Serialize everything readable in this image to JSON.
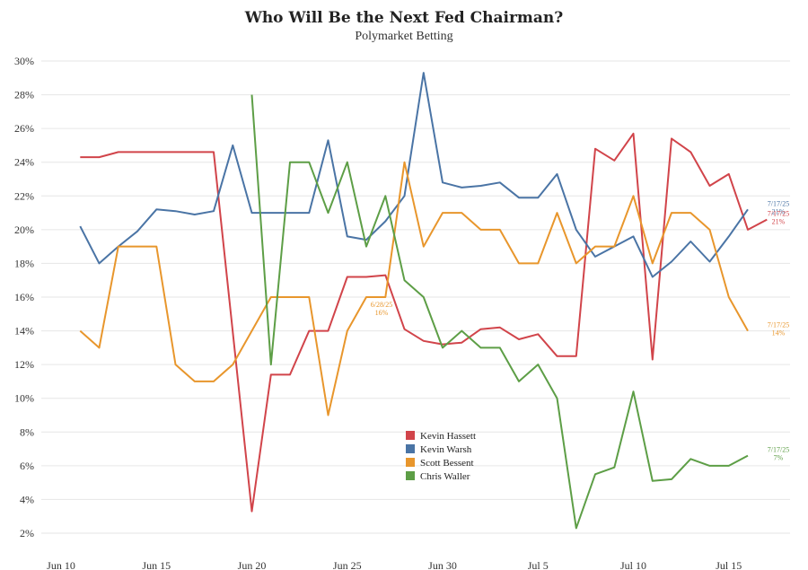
{
  "chart_data": {
    "type": "line",
    "title": "Who Will Be the Next Fed Chairman?",
    "subtitle": "Polymarket Betting",
    "xlabel": "",
    "ylabel": "",
    "ylim": [
      2,
      30
    ],
    "y_ticks": [
      "2%",
      "4%",
      "6%",
      "8%",
      "10%",
      "12%",
      "14%",
      "16%",
      "18%",
      "20%",
      "22%",
      "24%",
      "26%",
      "28%",
      "30%"
    ],
    "x_range": [
      0,
      37
    ],
    "x_ticks": [
      {
        "label": "Jun 10",
        "x": 0
      },
      {
        "label": "Jun 15",
        "x": 5
      },
      {
        "label": "Jun 20",
        "x": 10
      },
      {
        "label": "Jun 25",
        "x": 15
      },
      {
        "label": "Jun 30",
        "x": 20
      },
      {
        "label": "Jul 5",
        "x": 25
      },
      {
        "label": "Jul 10",
        "x": 30
      },
      {
        "label": "Jul 15",
        "x": 35
      }
    ],
    "grid": true,
    "legend_position": "center-bottom",
    "series": [
      {
        "name": "Kevin Hassett",
        "color": "#d1444a",
        "points": [
          [
            1,
            24.3
          ],
          [
            2,
            24.3
          ],
          [
            3,
            24.6
          ],
          [
            4,
            24.6
          ],
          [
            5,
            24.6
          ],
          [
            6,
            24.6
          ],
          [
            7,
            24.6
          ],
          [
            8,
            24.6
          ],
          [
            10,
            3.3
          ],
          [
            11,
            11.4
          ],
          [
            12,
            11.4
          ],
          [
            13,
            14
          ],
          [
            14,
            14
          ],
          [
            15,
            17.2
          ],
          [
            16,
            17.2
          ],
          [
            17,
            17.3
          ],
          [
            18,
            14.1
          ],
          [
            19,
            13.4
          ],
          [
            20,
            13.2
          ],
          [
            21,
            13.3
          ],
          [
            22,
            14.1
          ],
          [
            23,
            14.2
          ],
          [
            24,
            13.5
          ],
          [
            25,
            13.8
          ],
          [
            26,
            12.5
          ],
          [
            27,
            12.5
          ],
          [
            28,
            24.8
          ],
          [
            29,
            24.1
          ],
          [
            30,
            25.7
          ],
          [
            31,
            12.3
          ],
          [
            32,
            25.4
          ],
          [
            33,
            24.6
          ],
          [
            34,
            22.6
          ],
          [
            35,
            23.3
          ],
          [
            36,
            20
          ],
          [
            37,
            20.6
          ]
        ]
      },
      {
        "name": "Kevin Warsh",
        "color": "#4a74a5",
        "points": [
          [
            1,
            20.2
          ],
          [
            2,
            18
          ],
          [
            3,
            19
          ],
          [
            4,
            19.9
          ],
          [
            5,
            21.2
          ],
          [
            6,
            21.1
          ],
          [
            7,
            20.9
          ],
          [
            8,
            21.1
          ],
          [
            9,
            25
          ],
          [
            10,
            21
          ],
          [
            11,
            21
          ],
          [
            12,
            21
          ],
          [
            13,
            21
          ],
          [
            14,
            25.3
          ],
          [
            15,
            19.6
          ],
          [
            16,
            19.4
          ],
          [
            17,
            20.5
          ],
          [
            18,
            22
          ],
          [
            19,
            29.3
          ],
          [
            20,
            22.8
          ],
          [
            21,
            22.5
          ],
          [
            22,
            22.6
          ],
          [
            23,
            22.8
          ],
          [
            24,
            21.9
          ],
          [
            25,
            21.9
          ],
          [
            26,
            23.3
          ],
          [
            27,
            20
          ],
          [
            28,
            18.4
          ],
          [
            29,
            19
          ],
          [
            30,
            19.6
          ],
          [
            31,
            17.2
          ],
          [
            32,
            18.1
          ],
          [
            33,
            19.3
          ],
          [
            34,
            18.1
          ],
          [
            35,
            19.6
          ],
          [
            36,
            21.2
          ]
        ]
      },
      {
        "name": "Scott Bessent",
        "color": "#e8962c",
        "points": [
          [
            1,
            14
          ],
          [
            2,
            13
          ],
          [
            3,
            19
          ],
          [
            4,
            19
          ],
          [
            5,
            19
          ],
          [
            6,
            12
          ],
          [
            7,
            11
          ],
          [
            8,
            11
          ],
          [
            9,
            12
          ],
          [
            10,
            14
          ],
          [
            11,
            16
          ],
          [
            12,
            16
          ],
          [
            13,
            16
          ],
          [
            14,
            9
          ],
          [
            15,
            14
          ],
          [
            16,
            16
          ],
          [
            17,
            16
          ],
          [
            18,
            24
          ],
          [
            19,
            19
          ],
          [
            20,
            21
          ],
          [
            21,
            21
          ],
          [
            22,
            20
          ],
          [
            23,
            20
          ],
          [
            24,
            18
          ],
          [
            25,
            18
          ],
          [
            26,
            21
          ],
          [
            27,
            18
          ],
          [
            28,
            19
          ],
          [
            29,
            19
          ],
          [
            30,
            22
          ],
          [
            31,
            18
          ],
          [
            32,
            21
          ],
          [
            33,
            21
          ],
          [
            34,
            20
          ],
          [
            35,
            16
          ],
          [
            36,
            14
          ]
        ]
      },
      {
        "name": "Chris Waller",
        "color": "#5d9e46",
        "points": [
          [
            10,
            28
          ],
          [
            11,
            12
          ],
          [
            12,
            24
          ],
          [
            13,
            24
          ],
          [
            14,
            21
          ],
          [
            15,
            24
          ],
          [
            16,
            19
          ],
          [
            17,
            22
          ],
          [
            18,
            17
          ],
          [
            19,
            16
          ],
          [
            20,
            13
          ],
          [
            21,
            14
          ],
          [
            22,
            13
          ],
          [
            23,
            13
          ],
          [
            24,
            11
          ],
          [
            25,
            12
          ],
          [
            26,
            10
          ],
          [
            27,
            2.3
          ],
          [
            28,
            5.5
          ],
          [
            29,
            5.9
          ],
          [
            30,
            10.4
          ],
          [
            31,
            5.1
          ],
          [
            32,
            5.2
          ],
          [
            33,
            6.4
          ],
          [
            34,
            6
          ],
          [
            35,
            6
          ],
          [
            36,
            6.6
          ]
        ]
      }
    ],
    "annotations": [
      {
        "date": "7/17/25",
        "value": "21%",
        "series": "Kevin Warsh",
        "x": 37.6,
        "y": 21.2,
        "color": "#4a74a5"
      },
      {
        "date": "7/17/25",
        "value": "21%",
        "series": "Kevin Hassett",
        "x": 37.6,
        "y": 20.6,
        "color": "#d1444a"
      },
      {
        "date": "6/28/25",
        "value": "16%",
        "series": "Scott Bessent",
        "x": 16.8,
        "y": 15.2,
        "color": "#e8962c"
      },
      {
        "date": "7/17/25",
        "value": "14%",
        "series": "Scott Bessent",
        "x": 37.6,
        "y": 14,
        "color": "#e8962c"
      },
      {
        "date": "7/17/25",
        "value": "7%",
        "series": "Chris Waller",
        "x": 37.6,
        "y": 6.6,
        "color": "#5d9e46"
      }
    ]
  }
}
